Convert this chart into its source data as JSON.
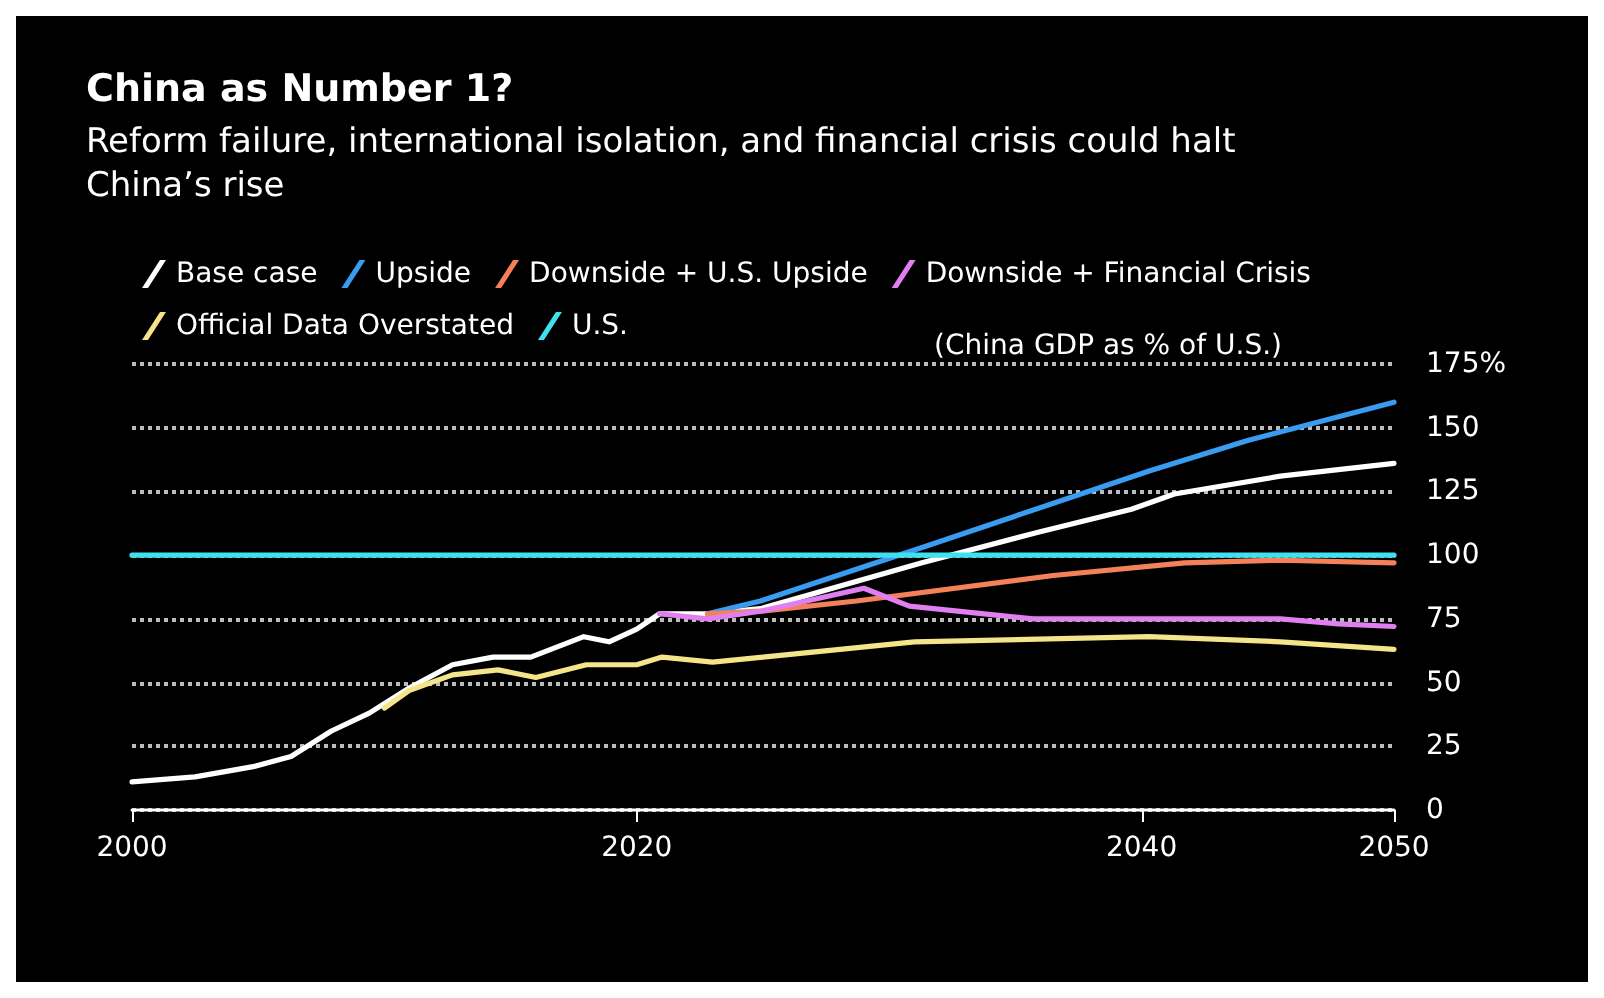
{
  "chart_data": {
    "type": "line",
    "title": "China as Number 1?",
    "subtitle": "Reform failure, international isolation, and financial crisis could halt China’s rise",
    "ylabel": "(China GDP as % of U.S.)",
    "xlim": [
      2000,
      2050
    ],
    "xticks": [
      2000,
      2020,
      2040,
      2050
    ],
    "ylim": [
      0,
      175
    ],
    "yticks": [
      0,
      25,
      50,
      75,
      100,
      125,
      150,
      {
        "value": 175,
        "label": "175%"
      }
    ],
    "grid": "y",
    "legend": "top left",
    "marker": "none",
    "line_style": "solid",
    "series": [
      {
        "name": "Base case",
        "color": "#ffffff",
        "x": [
          2000,
          2002.5,
          2004.8,
          2006.3,
          2007.9,
          2009.4,
          2011,
          2012.7,
          2014.3,
          2015.8,
          2017.9,
          2018.9,
          2020,
          2020.9,
          2022.8,
          2024.9,
          2031.3,
          2035.9,
          2039.6,
          2041.3,
          2045.5,
          2050
        ],
        "values": [
          11,
          13,
          17,
          21,
          31,
          38,
          48,
          57,
          60,
          60,
          68,
          66,
          71,
          77,
          77,
          79,
          97,
          109,
          118,
          124,
          131,
          136
        ]
      },
      {
        "name": "Upside",
        "color": "#3a9cf0",
        "x": [
          2022.8,
          2024.9,
          2031.3,
          2040.3,
          2044.2,
          2050
        ],
        "values": [
          77,
          82,
          103,
          133,
          145,
          160
        ]
      },
      {
        "name": "Downside + U.S. Upside",
        "color": "#f4815a",
        "x": [
          2022.8,
          2024.9,
          2028.7,
          2036.5,
          2041.7,
          2045.5,
          2050
        ],
        "values": [
          77,
          78,
          82,
          92,
          97,
          98,
          97
        ]
      },
      {
        "name": "Downside + Financial Crisis",
        "color": "#e080f0",
        "x": [
          2020.9,
          2022.8,
          2024.9,
          2029,
          2030.8,
          2035.7,
          2045.5,
          2047.8,
          2050
        ],
        "values": [
          77,
          75,
          78,
          87,
          80,
          75,
          75,
          73,
          72
        ]
      },
      {
        "name": "Official Data Overstated",
        "color": "#f5e48a",
        "x": [
          2010,
          2011,
          2012.7,
          2014.5,
          2016,
          2018,
          2020,
          2021,
          2023,
          2025,
          2031,
          2040.3,
          2045.5,
          2050
        ],
        "values": [
          40,
          47,
          53,
          55,
          52,
          57,
          57,
          60,
          58,
          60,
          66,
          68,
          66,
          63
        ]
      },
      {
        "name": "U.S.",
        "color": "#3fe0f0",
        "x": [
          2000,
          2050
        ],
        "values": [
          100,
          100
        ]
      }
    ]
  }
}
